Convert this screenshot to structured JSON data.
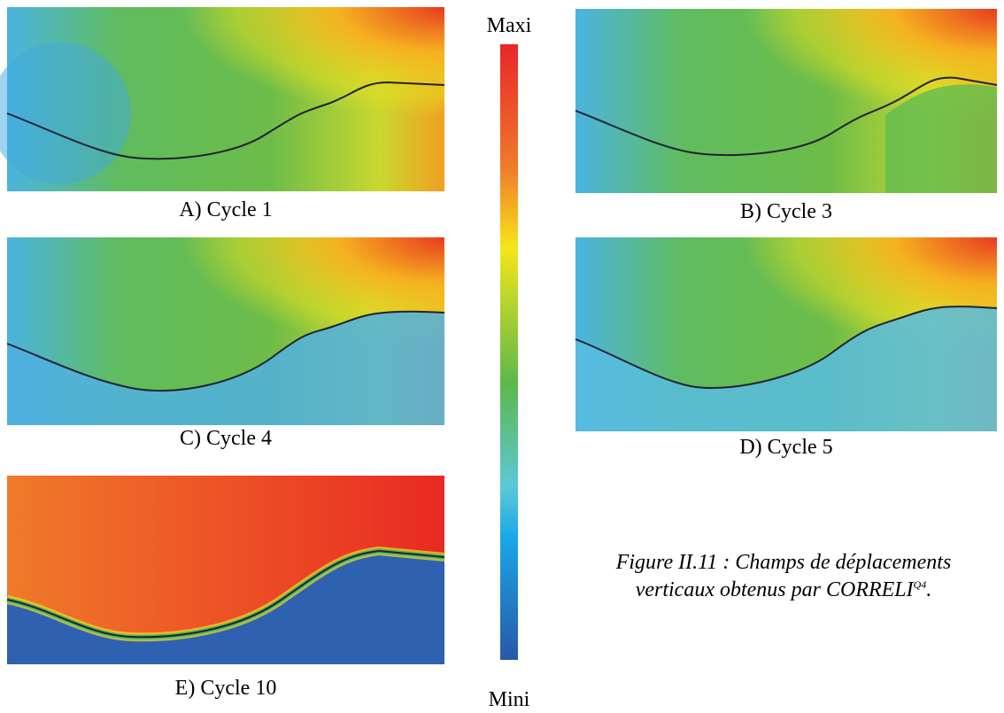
{
  "panels": [
    {
      "label": "A) Cycle 1"
    },
    {
      "label": "B) Cycle 3"
    },
    {
      "label": "C) Cycle 4"
    },
    {
      "label": "D) Cycle 5"
    },
    {
      "label": "E) Cycle 10"
    }
  ],
  "colorbar": {
    "max_label": "Maxi",
    "min_label": "Mini"
  },
  "caption": {
    "line1": "Figure II.11 : Champs de déplacements",
    "line2": "verticaux obtenus par CORRELI",
    "superscript": "Q4",
    "end": "."
  }
}
